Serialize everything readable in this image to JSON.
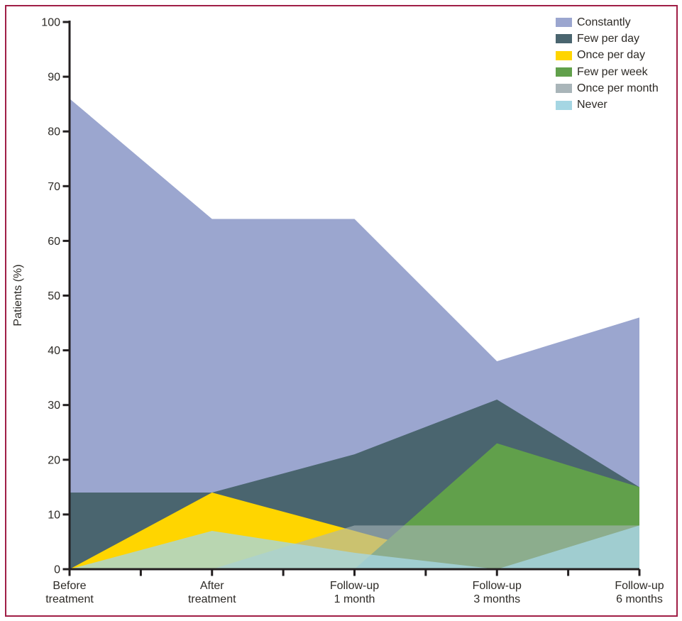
{
  "figure": {
    "border_color": "#A01E46",
    "background": "#FFFFFF"
  },
  "chart_data": {
    "type": "area",
    "overlapping_areas": true,
    "title": "",
    "xlabel": "",
    "ylabel": "Patients (%)",
    "ylim": [
      0,
      100
    ],
    "yticks": [
      0,
      10,
      20,
      30,
      40,
      50,
      60,
      70,
      80,
      90,
      100
    ],
    "grid": false,
    "legend_position": "top-right",
    "categories": [
      "Before treatment",
      "After treatment",
      "Follow-up 1 month",
      "Follow-up 3 months",
      "Follow-up 6 months"
    ],
    "category_labels": [
      [
        "Before",
        "treatment"
      ],
      [
        "After",
        "treatment"
      ],
      [
        "Follow-up",
        "1 month"
      ],
      [
        "Follow-up",
        "3 months"
      ],
      [
        "Follow-up",
        "6 months"
      ]
    ],
    "series": [
      {
        "name": "Constantly",
        "color": "#9BA6CF",
        "opacity": 1,
        "values": [
          86,
          64,
          64,
          38,
          46
        ]
      },
      {
        "name": "Few per day",
        "color": "#4A656F",
        "opacity": 1,
        "values": [
          14,
          14,
          21,
          31,
          15
        ]
      },
      {
        "name": "Once per day",
        "color": "#FFD500",
        "opacity": 1,
        "values": [
          0,
          14,
          7,
          0,
          0
        ]
      },
      {
        "name": "Few per week",
        "color": "#61A04B",
        "opacity": 1,
        "values": [
          0,
          0,
          0,
          23,
          15
        ]
      },
      {
        "name": "Once per month",
        "color": "#A9B5B9",
        "opacity": 0.6,
        "values": [
          0,
          0,
          8,
          8,
          8
        ]
      },
      {
        "name": "Never",
        "color": "#A5D6E3",
        "opacity": 0.78,
        "values": [
          0,
          7,
          3,
          0,
          8
        ]
      }
    ]
  }
}
